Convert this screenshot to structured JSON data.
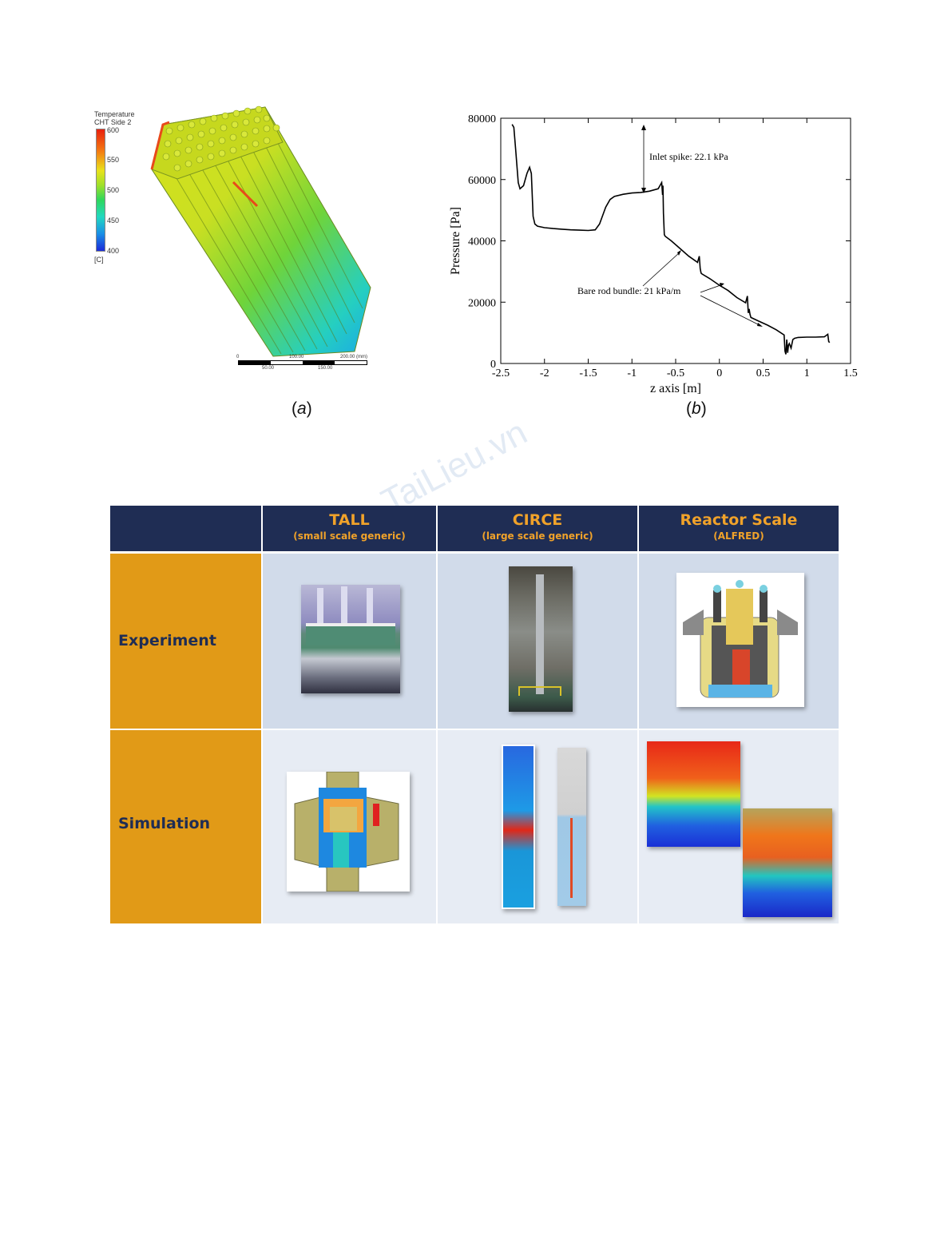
{
  "figure_a": {
    "legend_title_line1": "Temperature",
    "legend_title_line2": "CHT Side 2",
    "legend_ticks": [
      "600",
      "550",
      "500",
      "450",
      "400"
    ],
    "legend_unit": "[C]",
    "scale_top_labels": [
      "0",
      "100.00",
      "200.00 (mm)"
    ],
    "scale_bottom_labels": [
      "50.00",
      "150.00"
    ],
    "caption_letter": "a"
  },
  "figure_b": {
    "caption_letter": "b"
  },
  "chart_data": {
    "type": "line",
    "title": "",
    "xlabel": "z axis [m]",
    "ylabel": "Pressure [Pa]",
    "xlim": [
      -2.5,
      1.5
    ],
    "ylim": [
      0,
      80000
    ],
    "x_ticks": [
      "-2.5",
      "-2",
      "-1.5",
      "-1",
      "-0.5",
      "0",
      "0.5",
      "1",
      "1.5"
    ],
    "y_ticks": [
      "0",
      "20000",
      "40000",
      "60000",
      "80000"
    ],
    "grid": false,
    "series": [
      {
        "x": [
          -2.37,
          -2.35,
          -2.33,
          -2.3,
          -2.28,
          -2.24,
          -2.2,
          -2.17,
          -2.15,
          -2.13,
          -2.11,
          -2.08,
          -2.0,
          -1.9,
          -1.8,
          -1.7,
          -1.6,
          -1.5,
          -1.42,
          -1.37,
          -1.3,
          -1.25,
          -1.2,
          -1.1,
          -1.0,
          -0.9,
          -0.8,
          -0.7,
          -0.66,
          -0.65,
          -0.645,
          -0.64,
          -0.63,
          -0.62,
          -0.55,
          -0.45,
          -0.35,
          -0.25,
          -0.23,
          -0.22,
          -0.21,
          -0.2,
          -0.1,
          0.0,
          0.1,
          0.2,
          0.3,
          0.32,
          0.33,
          0.34,
          0.35,
          0.36,
          0.45,
          0.55,
          0.65,
          0.74,
          0.75,
          0.76,
          0.77,
          0.78,
          0.79,
          0.8,
          0.82,
          0.84,
          0.86,
          0.9,
          1.0,
          1.1,
          1.2,
          1.24,
          1.25,
          1.26
        ],
        "y": [
          78000,
          77000,
          70000,
          59000,
          57000,
          58000,
          62000,
          64000,
          62000,
          48000,
          45500,
          44800,
          44300,
          44000,
          43800,
          43600,
          43500,
          43400,
          43600,
          45500,
          51000,
          53500,
          54500,
          55200,
          55600,
          55800,
          56200,
          57000,
          59000,
          55000,
          58000,
          49000,
          42000,
          41500,
          40000,
          37500,
          35000,
          33000,
          35000,
          31000,
          29500,
          29200,
          27500,
          25500,
          23800,
          21500,
          19800,
          22000,
          16500,
          17800,
          16000,
          15000,
          13800,
          12500,
          11000,
          9300,
          4000,
          3000,
          7800,
          3500,
          6000,
          6500,
          5000,
          7800,
          8200,
          8500,
          8600,
          8600,
          8700,
          9500,
          7200,
          6800
        ]
      }
    ],
    "annotations": [
      "Inlet spike: 22.1 kPa",
      "Bare rod bundle: 21 kPa/m"
    ]
  },
  "table": {
    "columns": [
      {
        "title": "TALL",
        "subtitle": "(small scale generic)"
      },
      {
        "title": "CIRCE",
        "subtitle": "(large scale generic)"
      },
      {
        "title": "Reactor Scale",
        "subtitle": "(ALFRED)"
      }
    ],
    "rows": [
      "Experiment",
      "Simulation"
    ]
  },
  "colors": {
    "table_header_bg": "#1f2d54",
    "table_header_text": "#f0a22a",
    "row_label_bg": "#e19a17",
    "row_label_text": "#1f2d54",
    "experiment_cell_bg": "#d1dbea",
    "simulation_cell_bg": "#e7ecf4"
  },
  "watermark": "TaiLieu.vn"
}
